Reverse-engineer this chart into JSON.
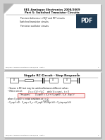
{
  "bg_color": "#d0d0d0",
  "slide1": {
    "title_line1": "EE1 Analogue Electronics 2008/2009",
    "title_line2": "Part 5: Switched Transistor Circuits",
    "bullets": [
      "Transient behaviour of BJT and FET circuits",
      "Switched transistor circuits",
      "Transistor oscillator circuits"
    ],
    "footer": "EE1/ISE1 Analogue Electronics 2008/2009 - Part 5"
  },
  "slide2": {
    "title": "Simple RC Circuit - Step Response",
    "bullet1": "Source is DC, but may be switched between different values",
    "bullet2": "KVL in circuit:",
    "kvl_eq": "V_s = V_R + V_C     while V = const.,  t > 0",
    "gives_label": "This gives:",
    "gives_eq": "V_cap(t) = V_s + (V_cap(0) - V_s) . Exp(-t)",
    "where_text": "where V_cap(0) = initial conditions at t = 0",
    "last_line1": "t = RC",
    "last_line2": "V_cap (t>0):   V_cap = V_s + (V_cap0 - Vs) exp(-t/t) + V_step exp(-t/t)",
    "footer": "EE1/ISE1 Analogue Electronics 2008/2009 - Part 5"
  },
  "pdf_badge_color": "#1e3a52",
  "pdf_text_color": "#ffffff",
  "slide_shadow": "#aaaaaa",
  "slide_border": "#bbbbbb"
}
